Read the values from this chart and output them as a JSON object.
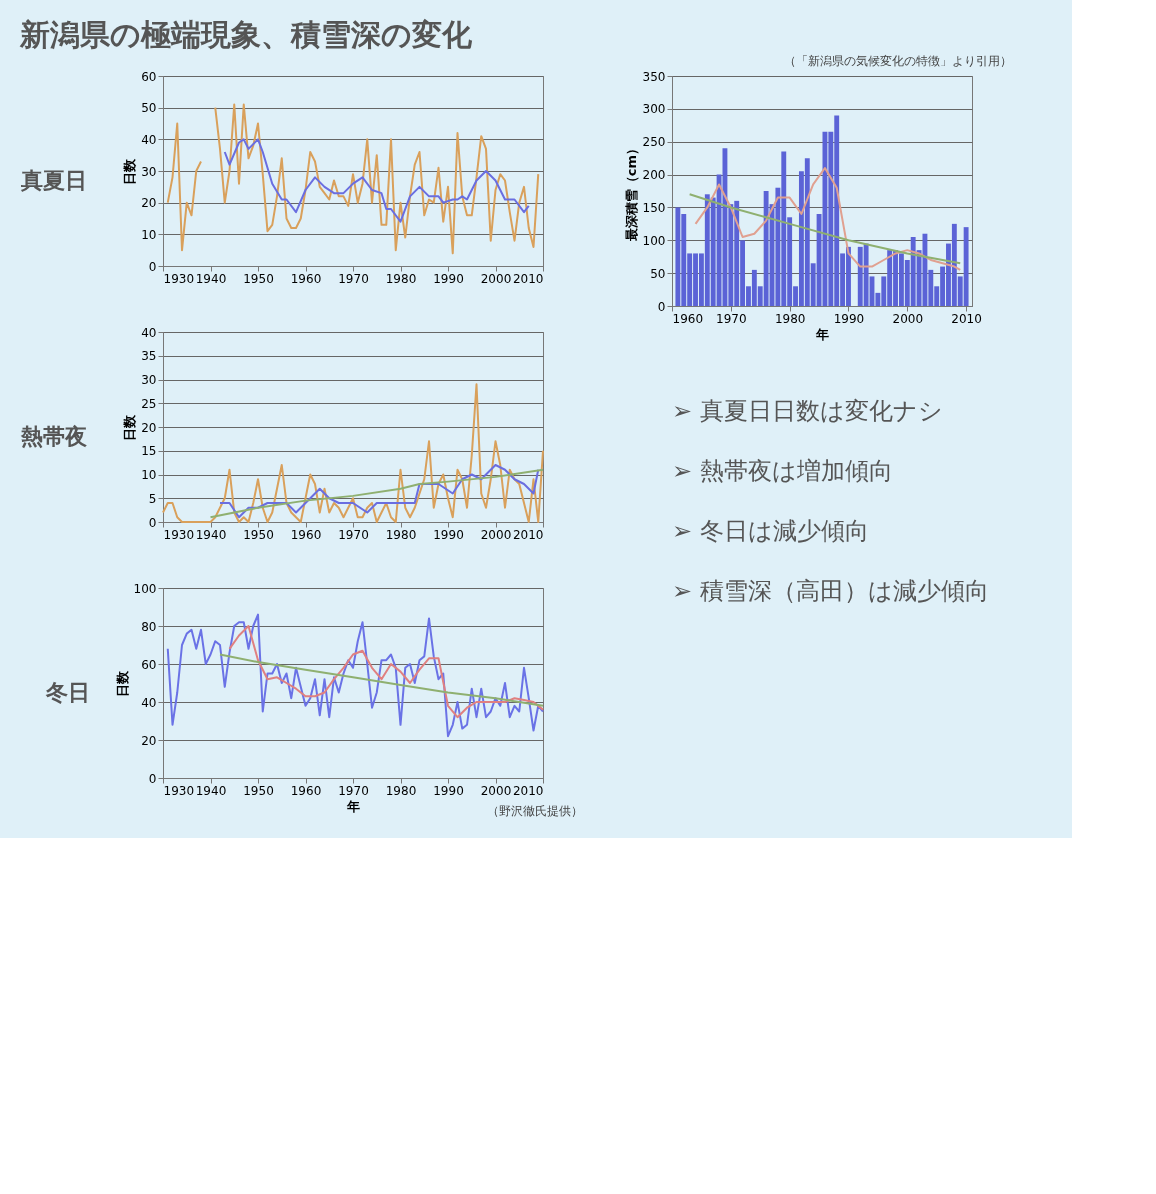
{
  "chart_data": [
    {
      "type": "line",
      "title": "真夏日",
      "ylabel": "日数",
      "xlim": [
        1930,
        2010
      ],
      "xticks": [
        1930,
        1940,
        1950,
        1960,
        1970,
        1980,
        1990,
        2000,
        2010
      ],
      "ylim": [
        0,
        60
      ],
      "yticks": [
        0,
        10,
        20,
        30,
        40,
        50,
        60
      ],
      "grid": "y",
      "series": [
        {
          "color": "#d9a05b",
          "x": [
            1931,
            1932,
            1933,
            1934,
            1935,
            1936,
            1937,
            1938,
            1939,
            1940,
            1941,
            1942,
            1943,
            1944,
            1945,
            1946,
            1947,
            1948,
            1949,
            1950,
            1951,
            1952,
            1953,
            1954,
            1955,
            1956,
            1957,
            1958,
            1959,
            1960,
            1961,
            1962,
            1963,
            1964,
            1965,
            1966,
            1967,
            1968,
            1969,
            1970,
            1971,
            1972,
            1973,
            1974,
            1975,
            1976,
            1977,
            1978,
            1979,
            1980,
            1981,
            1982,
            1983,
            1984,
            1985,
            1986,
            1987,
            1988,
            1989,
            1990,
            1991,
            1992,
            1993,
            1994,
            1995,
            1996,
            1997,
            1998,
            1999,
            2000,
            2001,
            2002,
            2003,
            2004,
            2005,
            2006,
            2007,
            2008,
            2009
          ],
          "values": [
            20,
            28,
            45,
            5,
            20,
            16,
            30,
            33,
            null,
            null,
            50,
            37,
            20,
            30,
            51,
            26,
            51,
            34,
            38,
            45,
            29,
            11,
            13,
            22,
            34,
            15,
            12,
            12,
            15,
            24,
            36,
            33,
            25,
            23,
            21,
            27,
            22,
            22,
            19,
            29,
            20,
            26,
            40,
            20,
            35,
            13,
            13,
            40,
            5,
            20,
            9,
            22,
            32,
            36,
            16,
            21,
            20,
            31,
            14,
            25,
            4,
            42,
            22,
            16,
            16,
            28,
            41,
            37,
            8,
            24,
            29,
            27,
            17,
            8,
            20,
            25,
            12,
            6,
            29
          ]
        },
        {
          "color": "#6a6ee0",
          "x": [
            1943,
            1944,
            1946,
            1947,
            1948,
            1950,
            1951,
            1953,
            1955,
            1956,
            1958,
            1960,
            1962,
            1964,
            1966,
            1968,
            1970,
            1972,
            1974,
            1976,
            1977,
            1978,
            1980,
            1982,
            1984,
            1986,
            1988,
            1989,
            1991,
            1992,
            1993,
            1994,
            1996,
            1998,
            2000,
            2002,
            2004,
            2006,
            2007
          ],
          "values": [
            36,
            32,
            39,
            40,
            37,
            40,
            36,
            26,
            21,
            21,
            17,
            24,
            28,
            25,
            23,
            23,
            26,
            28,
            24,
            23,
            18,
            18,
            14,
            22,
            25,
            22,
            22,
            20,
            21,
            21,
            22,
            21,
            27,
            30,
            27,
            21,
            21,
            17,
            19
          ]
        }
      ]
    },
    {
      "type": "line",
      "title": "熱帯夜",
      "ylabel": "日数",
      "xlim": [
        1930,
        2010
      ],
      "xticks": [
        1930,
        1940,
        1950,
        1960,
        1970,
        1980,
        1990,
        2000,
        2010
      ],
      "ylim": [
        0,
        40
      ],
      "yticks": [
        0,
        5,
        10,
        15,
        20,
        25,
        30,
        35,
        40
      ],
      "grid": "y",
      "series": [
        {
          "color": "#d9a05b",
          "x": [
            1930,
            1931,
            1932,
            1933,
            1934,
            1935,
            1936,
            1937,
            1938,
            1939,
            1940,
            1941,
            1942,
            1943,
            1944,
            1945,
            1946,
            1947,
            1948,
            1949,
            1950,
            1951,
            1952,
            1953,
            1954,
            1955,
            1956,
            1957,
            1958,
            1959,
            1960,
            1961,
            1962,
            1963,
            1964,
            1965,
            1966,
            1967,
            1968,
            1969,
            1970,
            1971,
            1972,
            1973,
            1974,
            1975,
            1976,
            1977,
            1978,
            1979,
            1980,
            1981,
            1982,
            1983,
            1984,
            1985,
            1986,
            1987,
            1988,
            1989,
            1990,
            1991,
            1992,
            1993,
            1994,
            1995,
            1996,
            1997,
            1998,
            1999,
            2000,
            2001,
            2002,
            2003,
            2004,
            2005,
            2006,
            2007,
            2008,
            2009,
            2010
          ],
          "values": [
            2,
            4,
            4,
            1,
            0,
            0,
            0,
            0,
            0,
            0,
            0,
            1,
            3,
            5,
            11,
            2,
            0,
            1,
            0,
            4,
            9,
            3,
            0,
            2,
            7,
            12,
            4,
            2,
            1,
            0,
            5,
            10,
            8,
            2,
            7,
            2,
            4,
            3,
            1,
            3,
            5,
            1,
            1,
            3,
            4,
            0,
            2,
            4,
            1,
            0,
            11,
            3,
            1,
            3,
            6,
            9,
            17,
            3,
            8,
            10,
            5,
            1,
            11,
            9,
            3,
            14,
            29,
            6,
            3,
            9,
            17,
            12,
            3,
            11,
            9,
            8,
            4,
            0,
            9,
            0,
            15
          ]
        },
        {
          "color": "#6a6ee0",
          "x": [
            1942,
            1944,
            1946,
            1948,
            1950,
            1952,
            1954,
            1956,
            1958,
            1960,
            1963,
            1965,
            1967,
            1970,
            1973,
            1975,
            1980,
            1983,
            1984,
            1988,
            1991,
            1993,
            1995,
            1997,
            2000,
            2002,
            2004,
            2006,
            2008,
            2009
          ],
          "values": [
            4,
            4,
            1,
            3,
            3,
            4,
            4,
            4,
            2,
            4,
            7,
            5,
            4,
            4,
            2,
            4,
            4,
            4,
            8,
            8,
            6,
            9,
            10,
            9,
            12,
            11,
            9,
            8,
            6,
            11
          ]
        },
        {
          "color": "#8fb070",
          "x": [
            1940,
            1950,
            1960,
            1970,
            1980,
            1984,
            1990,
            2000,
            2010
          ],
          "values": [
            1,
            3,
            4.5,
            5.5,
            7,
            8,
            8.5,
            9.5,
            11
          ]
        }
      ]
    },
    {
      "type": "line",
      "title": "冬日",
      "ylabel": "日数",
      "xlabel": "年",
      "xlim": [
        1930,
        2010
      ],
      "xticks": [
        1930,
        1940,
        1950,
        1960,
        1970,
        1980,
        1990,
        2000,
        2010
      ],
      "ylim": [
        0,
        100
      ],
      "yticks": [
        0,
        20,
        40,
        60,
        80,
        100
      ],
      "grid": "y",
      "annotations": [
        "（野沢徹氏提供）"
      ],
      "series": [
        {
          "color": "#6a72e6",
          "x": [
            1931,
            1932,
            1933,
            1934,
            1935,
            1936,
            1937,
            1938,
            1939,
            1940,
            1941,
            1942,
            1943,
            1944,
            1945,
            1946,
            1947,
            1948,
            1949,
            1950,
            1951,
            1952,
            1953,
            1954,
            1955,
            1956,
            1957,
            1958,
            1959,
            1960,
            1961,
            1962,
            1963,
            1964,
            1965,
            1966,
            1967,
            1968,
            1969,
            1970,
            1971,
            1972,
            1973,
            1974,
            1975,
            1976,
            1977,
            1978,
            1979,
            1980,
            1981,
            1982,
            1983,
            1984,
            1985,
            1986,
            1987,
            1988,
            1989,
            1990,
            1991,
            1992,
            1993,
            1994,
            1995,
            1996,
            1997,
            1998,
            1999,
            2000,
            2001,
            2002,
            2003,
            2004,
            2005,
            2006,
            2007,
            2008,
            2009,
            2010
          ],
          "values": [
            68,
            28,
            45,
            70,
            76,
            78,
            68,
            78,
            60,
            65,
            72,
            70,
            48,
            66,
            80,
            82,
            82,
            68,
            80,
            86,
            35,
            55,
            55,
            60,
            50,
            55,
            42,
            58,
            48,
            38,
            42,
            52,
            33,
            52,
            32,
            53,
            45,
            55,
            62,
            58,
            72,
            82,
            60,
            37,
            45,
            62,
            62,
            65,
            58,
            28,
            58,
            60,
            50,
            62,
            64,
            84,
            64,
            52,
            55,
            22,
            28,
            40,
            26,
            28,
            47,
            32,
            47,
            32,
            35,
            42,
            38,
            50,
            32,
            38,
            35,
            58,
            42,
            25,
            38,
            35
          ]
        },
        {
          "color": "#e08080",
          "x": [
            1944,
            1946,
            1948,
            1950,
            1952,
            1954,
            1956,
            1958,
            1960,
            1962,
            1964,
            1966,
            1968,
            1970,
            1972,
            1974,
            1976,
            1978,
            1980,
            1982,
            1984,
            1986,
            1988,
            1990,
            1992,
            1994,
            1996,
            1998,
            2000,
            2002,
            2004,
            2006,
            2008,
            2010
          ],
          "values": [
            68,
            75,
            80,
            62,
            52,
            53,
            50,
            47,
            43,
            43,
            45,
            52,
            58,
            65,
            67,
            58,
            52,
            60,
            56,
            50,
            57,
            63,
            63,
            38,
            32,
            37,
            40,
            40,
            40,
            40,
            42,
            41,
            40,
            36
          ]
        },
        {
          "color": "#8fb070",
          "x": [
            1942,
            1950,
            1960,
            1970,
            1980,
            1990,
            2000,
            2010
          ],
          "values": [
            65,
            61,
            57,
            53,
            49,
            45,
            42,
            38
          ]
        }
      ]
    },
    {
      "type": "bar",
      "ylabel": "最深積雪（cm）",
      "xlabel": "年",
      "xlim": [
        1960,
        2011
      ],
      "xticks": [
        1960,
        1970,
        1980,
        1990,
        2000,
        2010
      ],
      "ylim": [
        0,
        350
      ],
      "yticks": [
        0,
        50,
        100,
        150,
        200,
        250,
        300,
        350
      ],
      "grid": "y",
      "annotations": [
        "（「新潟県の気候変化の特徴」より引用）"
      ],
      "x": [
        1961,
        1962,
        1963,
        1964,
        1965,
        1966,
        1967,
        1968,
        1969,
        1970,
        1971,
        1972,
        1973,
        1974,
        1975,
        1976,
        1977,
        1978,
        1979,
        1980,
        1981,
        1982,
        1983,
        1984,
        1985,
        1986,
        1987,
        1988,
        1989,
        1990,
        1991,
        1992,
        1993,
        1994,
        1995,
        1996,
        1997,
        1998,
        1999,
        2000,
        2001,
        2002,
        2003,
        2004,
        2005,
        2006,
        2007,
        2008,
        2009,
        2010
      ],
      "series": [
        {
          "color": "#5b63d6",
          "values": [
            150,
            140,
            80,
            80,
            80,
            170,
            165,
            200,
            240,
            155,
            160,
            100,
            30,
            55,
            30,
            175,
            155,
            180,
            235,
            135,
            30,
            205,
            225,
            65,
            140,
            265,
            265,
            290,
            80,
            90,
            0,
            90,
            95,
            45,
            20,
            45,
            85,
            85,
            80,
            70,
            105,
            85,
            110,
            55,
            30,
            60,
            95,
            125,
            45,
            120
          ]
        },
        {
          "type": "line",
          "color": "#e0a090",
          "x": [
            1964,
            1966,
            1968,
            1970,
            1972,
            1974,
            1976,
            1978,
            1980,
            1982,
            1984,
            1986,
            1988,
            1990,
            1992,
            1994,
            1996,
            1998,
            2000,
            2002,
            2004,
            2006,
            2008,
            2009
          ],
          "values": [
            125,
            150,
            185,
            150,
            105,
            110,
            130,
            165,
            165,
            140,
            185,
            210,
            180,
            80,
            60,
            60,
            70,
            80,
            85,
            80,
            70,
            65,
            60,
            55
          ]
        },
        {
          "type": "line",
          "color": "#8fb070",
          "x": [
            1963,
            1970,
            1980,
            1990,
            2000,
            2009
          ],
          "values": [
            170,
            150,
            125,
            100,
            80,
            65
          ]
        }
      ]
    },
    {
      "type": "other",
      "title": "新潟県の極端現象、積雪深の変化",
      "annotations": [
        "➢ 真夏日日数は変化ナシ",
        "➢ 熱帯夜は増加傾向",
        "➢ 冬日は減少傾向",
        "➢ 積雪深（高田）は減少傾向"
      ]
    }
  ]
}
